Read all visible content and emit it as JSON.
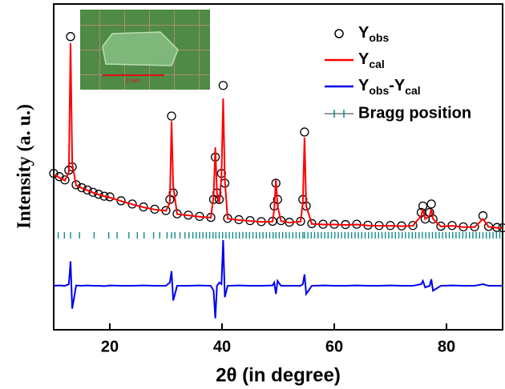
{
  "chart_data": {
    "type": "line",
    "x_label": "2θ (in degree)",
    "y_label": "Intensity (a. u.)",
    "xlim": [
      10,
      90
    ],
    "xticks": [
      20,
      40,
      60,
      80
    ],
    "ylim": [
      0,
      100
    ],
    "x": [
      10,
      11,
      12,
      12.7,
      13.0,
      13.3,
      14,
      15,
      16,
      17,
      18,
      19,
      20,
      22,
      24,
      26,
      28,
      30,
      30.7,
      31.0,
      31.3,
      32,
      34,
      36,
      38,
      38.5,
      38.8,
      39.1,
      39.5,
      39.9,
      40.2,
      40.5,
      41,
      43,
      45,
      47,
      49,
      49.3,
      49.6,
      49.9,
      50.5,
      52,
      54,
      54.4,
      54.7,
      55.0,
      56,
      58,
      60,
      62,
      64,
      66,
      68,
      70,
      72,
      74,
      75.5,
      75.8,
      76.2,
      77.0,
      77.3,
      77.6,
      79,
      81,
      83,
      85,
      86.5,
      87.5,
      89,
      90
    ],
    "series": [
      {
        "name_parts": [
          "Y",
          "obs"
        ],
        "style": "circles",
        "color": "#000000",
        "values": [
          48,
          47,
          46,
          49,
          90,
          50,
          44.5,
          43.6,
          42.9,
          42.2,
          41.6,
          41.0,
          40.8,
          39.6,
          38.6,
          37.7,
          37.0,
          36.6,
          40,
          65.6,
          42,
          35.6,
          35.2,
          34.8,
          34.5,
          40,
          53,
          42,
          40,
          48,
          75,
          45,
          34.2,
          33.8,
          33.5,
          33.2,
          33.3,
          38,
          45,
          40,
          33.5,
          33,
          33.3,
          40,
          60.7,
          38,
          32.6,
          32.4,
          32.4,
          32.3,
          32.4,
          32.1,
          32.0,
          32.0,
          31.9,
          32.0,
          36,
          38,
          34,
          36,
          38.6,
          34,
          31.8,
          32,
          31.6,
          31.6,
          35,
          31.7,
          31.4,
          31.3
        ]
      },
      {
        "name_parts": [
          "Y",
          "cal"
        ],
        "style": "line",
        "color": "#ff0000",
        "values": [
          47.6,
          46.7,
          45.8,
          48.5,
          88,
          51,
          44.3,
          43.5,
          42.8,
          42.1,
          41.5,
          41.0,
          40.6,
          39.5,
          38.5,
          37.6,
          36.9,
          36.5,
          39,
          64,
          44,
          35.5,
          35.1,
          34.7,
          34.4,
          41,
          56,
          42,
          39,
          47,
          71,
          46,
          34.1,
          33.7,
          33.4,
          33.1,
          33.2,
          37,
          46,
          38,
          33.4,
          32.9,
          33.2,
          39,
          59,
          38,
          32.5,
          32.3,
          32.3,
          32.2,
          32.3,
          32.0,
          31.9,
          31.9,
          31.8,
          31.9,
          35,
          37,
          34,
          35,
          37,
          34,
          31.7,
          31.9,
          31.5,
          31.5,
          34,
          31.6,
          31.3,
          31.2
        ]
      },
      {
        "name_parts": [
          "Y",
          "obs",
          "-Y",
          "cal"
        ],
        "style": "line",
        "color": "#0000ee",
        "values": [
          13.5,
          13.6,
          13.5,
          14,
          21,
          6.5,
          13.6,
          13.5,
          13.6,
          13.5,
          13.5,
          13.4,
          13.6,
          13.5,
          13.5,
          13.6,
          13.5,
          13.5,
          14.5,
          18,
          9,
          13.5,
          13.5,
          13.6,
          13.5,
          12,
          3.5,
          13.5,
          14.5,
          14,
          27.5,
          10,
          13.5,
          13.6,
          13.5,
          13.5,
          13.6,
          14.5,
          11,
          15,
          13.5,
          13.5,
          13.5,
          14,
          17,
          11,
          13.5,
          13.6,
          13.5,
          13.5,
          13.6,
          13.5,
          13.5,
          13.6,
          13.5,
          13.5,
          14,
          15,
          13,
          13.5,
          15.5,
          12,
          13.5,
          13.6,
          13.5,
          13.5,
          14,
          13.5,
          13.5,
          13.5
        ]
      }
    ],
    "bragg": {
      "name": "Bragg position",
      "color": "#138a8a",
      "positions": [
        10.8,
        11.9,
        13.0,
        14.6,
        17.2,
        19.8,
        21.3,
        23.4,
        24.9,
        26.1,
        27.8,
        28.9,
        30.2,
        31.0,
        31.6,
        32.5,
        33.4,
        34.1,
        34.8,
        35.4,
        36.0,
        36.6,
        37.2,
        37.8,
        38.4,
        38.9,
        39.5,
        40.1,
        40.7,
        41.3,
        41.9,
        42.5,
        43.1,
        43.7,
        44.3,
        44.9,
        45.5,
        46.1,
        46.7,
        47.3,
        47.9,
        48.5,
        49.1,
        49.6,
        50.2,
        50.8,
        51.4,
        52.0,
        52.6,
        53.2,
        53.8,
        54.4,
        54.7,
        55.3,
        55.9,
        56.5,
        57.1,
        57.7,
        58.3,
        58.9,
        59.5,
        60.1,
        60.7,
        61.3,
        61.9,
        62.5,
        63.1,
        63.7,
        64.3,
        64.9,
        65.5,
        66.1,
        66.7,
        67.3,
        67.9,
        68.5,
        69.1,
        69.7,
        70.3,
        70.9,
        71.5,
        72.1,
        72.7,
        73.3,
        73.9,
        74.5,
        75.1,
        75.7,
        76.3,
        76.9,
        77.5,
        78.1,
        78.7,
        79.3,
        79.9,
        80.5,
        81.1,
        81.7,
        82.3,
        82.9,
        83.5,
        84.1,
        84.7,
        85.3,
        85.9,
        86.5,
        87.1,
        87.7,
        88.3,
        88.9,
        89.5
      ]
    },
    "inset": {
      "scale_label": "2 mm"
    }
  }
}
